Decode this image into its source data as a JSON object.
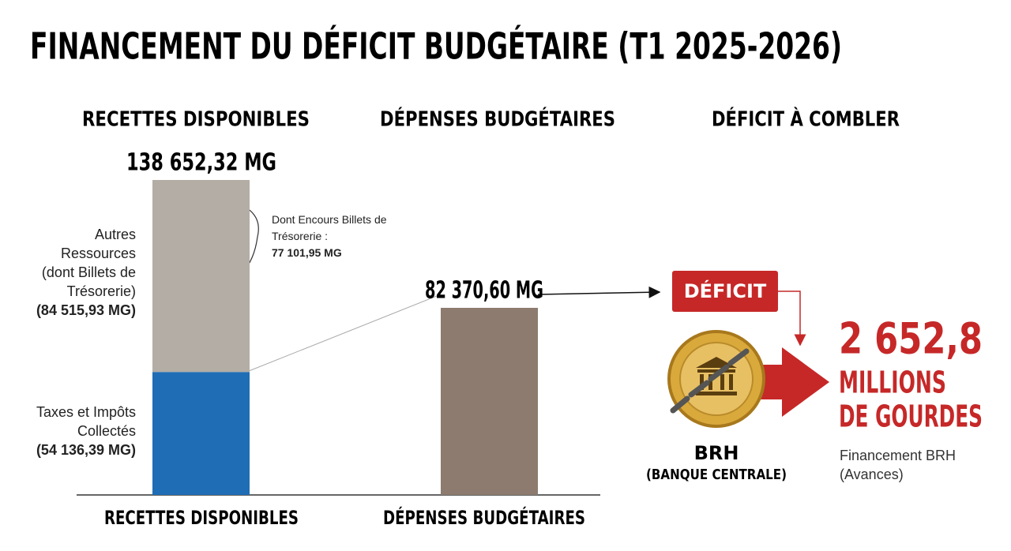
{
  "chart_data": {
    "type": "bar",
    "title": "FINANCEMENT DU DÉFICIT BUDGÉTAIRE (T1 2025-2026)",
    "column_titles": [
      "RECETTES DISPONIBLES",
      "DÉPENSES BUDGÉTAIRES",
      "DÉFICIT À COMBLER"
    ],
    "categories": [
      "RECETTES DISPONIBLES",
      "DÉPENSES BUDGÉTAIRES"
    ],
    "series": [
      {
        "name": "Taxes et Impôts Collectés",
        "color": "#1f6db5",
        "values": [
          54136.39,
          null
        ],
        "value_labels": [
          "(54 136,39 MG)",
          null
        ]
      },
      {
        "name": "Autres Ressources (dont Billets de Trésorerie)",
        "color": "#b3ada5",
        "values": [
          84515.93,
          null
        ],
        "value_labels": [
          "(84 515,93 MG)",
          null
        ]
      },
      {
        "color": "#8c7b6e",
        "values": [
          null,
          82370.6
        ]
      }
    ],
    "totals": [
      138652.32,
      82370.6
    ],
    "total_labels": [
      "138 652,32 MG",
      "82 370,60 MG"
    ],
    "ylim": [
      0,
      138652.32
    ],
    "annotation": {
      "text": "Dont Encours Billets de Trésorerie :",
      "value": "77 101,95 MG"
    },
    "deficit": {
      "badge": "DÉFICIT",
      "amount": "2 652,8",
      "unit_lines": [
        "MILLIONS",
        "DE GOURDES"
      ],
      "lender": "BRH",
      "lender_detail": "(BANQUE CENTRALE)",
      "note_lines": [
        "Financement BRH",
        "(Avances)"
      ]
    }
  }
}
